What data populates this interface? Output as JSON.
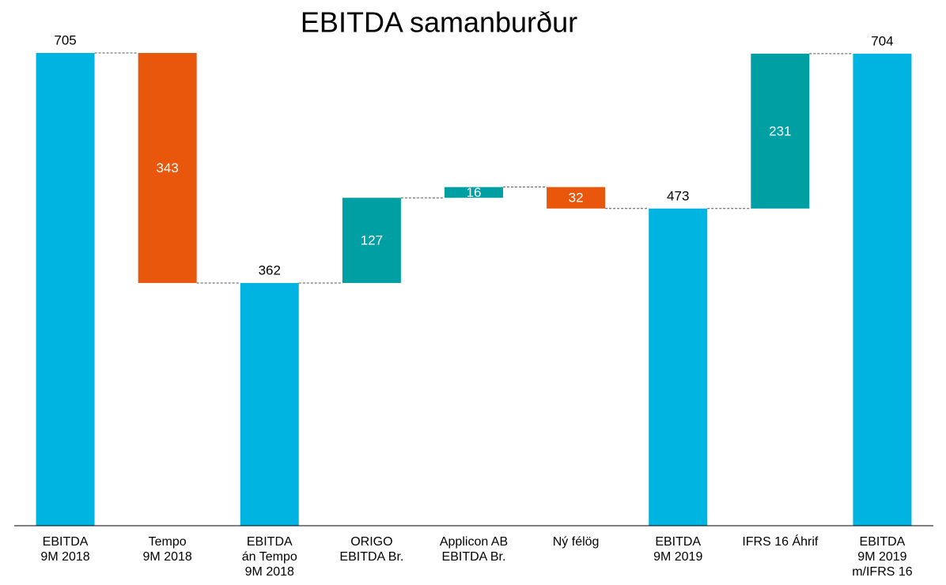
{
  "chart_data": {
    "type": "waterfall",
    "title": "EBITDA samanburður",
    "categories": [
      [
        "EBITDA",
        "9M  2018"
      ],
      [
        "Tempo",
        "9M 2018"
      ],
      [
        "EBITDA",
        "án Tempo",
        "9M 2018"
      ],
      [
        "ORIGO",
        "EBITDA Br."
      ],
      [
        "Applicon AB",
        "EBITDA Br."
      ],
      [
        "Ný félög"
      ],
      [
        "EBITDA",
        "9M 2019"
      ],
      [
        "IFRS 16 Áhrif"
      ],
      [
        "EBITDA",
        "9M 2019",
        "m/IFRS 16"
      ]
    ],
    "values": [
      705,
      -343,
      362,
      127,
      16,
      -32,
      473,
      231,
      704
    ],
    "value_labels": [
      "705",
      "343",
      "362",
      "127",
      "16",
      "32",
      "473",
      "231",
      "704"
    ],
    "measure": [
      "total",
      "relative",
      "total",
      "relative",
      "relative",
      "relative",
      "total",
      "relative",
      "total"
    ],
    "colors": {
      "total": "#00b4e2",
      "increase": "#009fa3",
      "decrease": "#e8570c"
    }
  }
}
